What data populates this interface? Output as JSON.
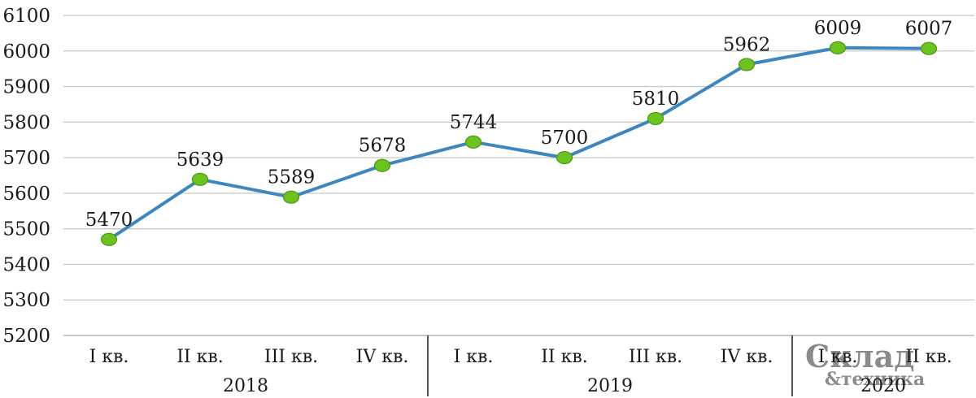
{
  "chart_data": {
    "type": "line",
    "title": "",
    "xlabel": "",
    "ylabel": "",
    "ylim": [
      5200,
      6100
    ],
    "yticks": [
      5200,
      5300,
      5400,
      5500,
      5600,
      5700,
      5800,
      5900,
      6000,
      6100
    ],
    "grid": true,
    "categories": [
      "I кв.",
      "II кв.",
      "III кв.",
      "IV кв.",
      "I кв.",
      "II кв.",
      "III кв.",
      "IV кв.",
      "I кв.",
      "II кв."
    ],
    "groups": [
      {
        "label": "2018",
        "count": 4
      },
      {
        "label": "2019",
        "count": 4
      },
      {
        "label": "2020",
        "count": 2
      }
    ],
    "series": [
      {
        "values": [
          5470,
          5639,
          5589,
          5678,
          5744,
          5700,
          5810,
          5962,
          6009,
          6007
        ]
      }
    ],
    "colors": {
      "line": "#3d86bf",
      "marker": "#6cc21f"
    }
  },
  "watermark": {
    "line1": "Склад",
    "line2": "&техника"
  }
}
